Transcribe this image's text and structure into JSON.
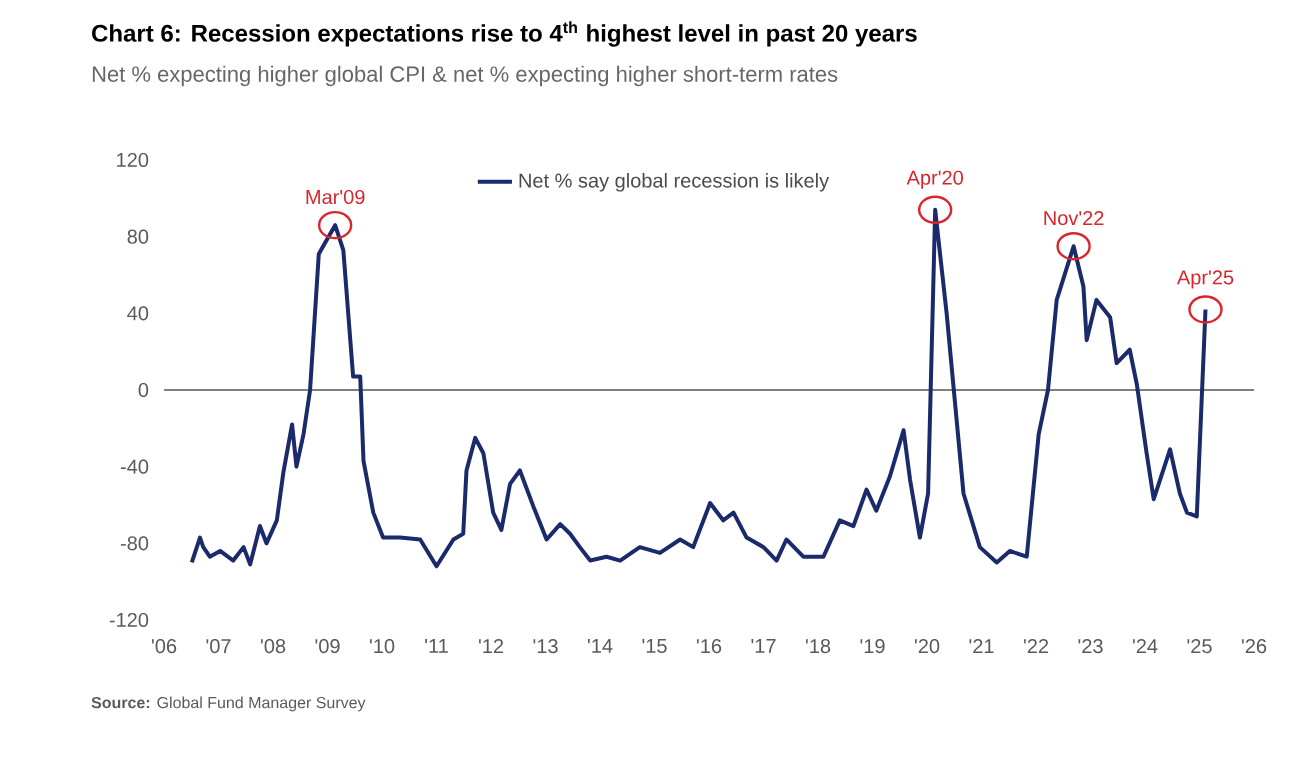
{
  "chart_data": {
    "type": "line",
    "title": "Chart 6: Recession expectations rise to 4$^{th}$ highest level in past 20 years",
    "subtitle": "Net % expecting higher global CPI & net % expecting higher short-term rates",
    "x": [
      2006.51,
      2006.66,
      2006.72,
      2006.84,
      2007.03,
      2007.27,
      2007.46,
      2007.58,
      2007.76,
      2007.88,
      2008.07,
      2008.19,
      2008.35,
      2008.43,
      2008.56,
      2008.68,
      2008.84,
      2008.92,
      2009.14,
      2009.29,
      2009.47,
      2009.6,
      2009.66,
      2009.84,
      2010.02,
      2010.33,
      2010.7,
      2011.0,
      2011.31,
      2011.49,
      2011.55,
      2011.71,
      2011.86,
      2012.04,
      2012.19,
      2012.35,
      2012.53,
      2012.78,
      2013.02,
      2013.27,
      2013.45,
      2013.63,
      2013.82,
      2014.12,
      2014.37,
      2014.73,
      2015.1,
      2015.47,
      2015.71,
      2016.02,
      2016.26,
      2016.45,
      2016.69,
      2017.0,
      2017.24,
      2017.42,
      2017.73,
      2018.1,
      2018.4,
      2018.65,
      2018.89,
      2019.07,
      2019.32,
      2019.57,
      2019.69,
      2019.87,
      2020.02,
      2020.15,
      2020.36,
      2020.67,
      2020.97,
      2021.28,
      2021.52,
      2021.83,
      2022.05,
      2022.22,
      2022.38,
      2022.69,
      2022.87,
      2022.93,
      2023.11,
      2023.36,
      2023.48,
      2023.72,
      2023.85,
      2024.03,
      2024.16,
      2024.46,
      2024.64,
      2024.77,
      2024.95,
      2025.11
    ],
    "series": [
      {
        "name": "Net % say global recession is likely",
        "color": "#1b2a6b",
        "values": [
          -90,
          -77,
          -82,
          -87,
          -84,
          -89,
          -82,
          -91,
          -71,
          -80,
          -68,
          -43,
          -18,
          -40,
          -23,
          0,
          71,
          75,
          86,
          73,
          7,
          7,
          -37,
          -64,
          -77,
          -77,
          -78,
          -92,
          -78,
          -75,
          -42,
          -25,
          -33,
          -64,
          -73,
          -49,
          -42,
          -61,
          -78,
          -70,
          -75,
          -82,
          -89,
          -87,
          -89,
          -82,
          -85,
          -78,
          -82,
          -59,
          -68,
          -64,
          -77,
          -82,
          -89,
          -78,
          -87,
          -87,
          -68,
          -71,
          -52,
          -63,
          -45,
          -21,
          -47,
          -77,
          -54,
          94,
          40,
          -54,
          -82,
          -90,
          -84,
          -87,
          -23,
          0,
          47,
          75,
          54,
          26,
          47,
          38,
          14,
          21,
          3,
          -33,
          -57,
          -31,
          -54,
          -64,
          -66,
          42
        ]
      }
    ],
    "xlim": [
      2006,
      2026
    ],
    "xticks": [
      {
        "value": 2006,
        "label": "'06"
      },
      {
        "value": 2007,
        "label": "'07"
      },
      {
        "value": 2008,
        "label": "'08"
      },
      {
        "value": 2009,
        "label": "'09"
      },
      {
        "value": 2010,
        "label": "'10"
      },
      {
        "value": 2011,
        "label": "'11"
      },
      {
        "value": 2012,
        "label": "'12"
      },
      {
        "value": 2013,
        "label": "'13"
      },
      {
        "value": 2014,
        "label": "'14"
      },
      {
        "value": 2015,
        "label": "'15"
      },
      {
        "value": 2016,
        "label": "'16"
      },
      {
        "value": 2017,
        "label": "'17"
      },
      {
        "value": 2018,
        "label": "'18"
      },
      {
        "value": 2019,
        "label": "'19"
      },
      {
        "value": 2020,
        "label": "'20"
      },
      {
        "value": 2021,
        "label": "'21"
      },
      {
        "value": 2022,
        "label": "'22"
      },
      {
        "value": 2023,
        "label": "'23"
      },
      {
        "value": 2024,
        "label": "'24"
      },
      {
        "value": 2025,
        "label": "'25"
      },
      {
        "value": 2026,
        "label": "'26"
      }
    ],
    "ylim": [
      -120,
      120
    ],
    "yticks": [
      -120,
      -80,
      -40,
      0,
      40,
      80,
      120
    ],
    "ref_lines": [
      {
        "axis": "y",
        "value": 0,
        "color": "#555555"
      }
    ],
    "legend": "top",
    "annotations": [
      {
        "text": "Mar'09",
        "x": 2009.14,
        "y": 86
      },
      {
        "text": "Apr'20",
        "x": 2020.15,
        "y": 94
      },
      {
        "text": "Nov'22",
        "x": 2022.69,
        "y": 75
      },
      {
        "text": "Apr'25",
        "x": 2025.11,
        "y": 42
      },
      "**Source:** Global Fund Manager Survey"
    ]
  }
}
